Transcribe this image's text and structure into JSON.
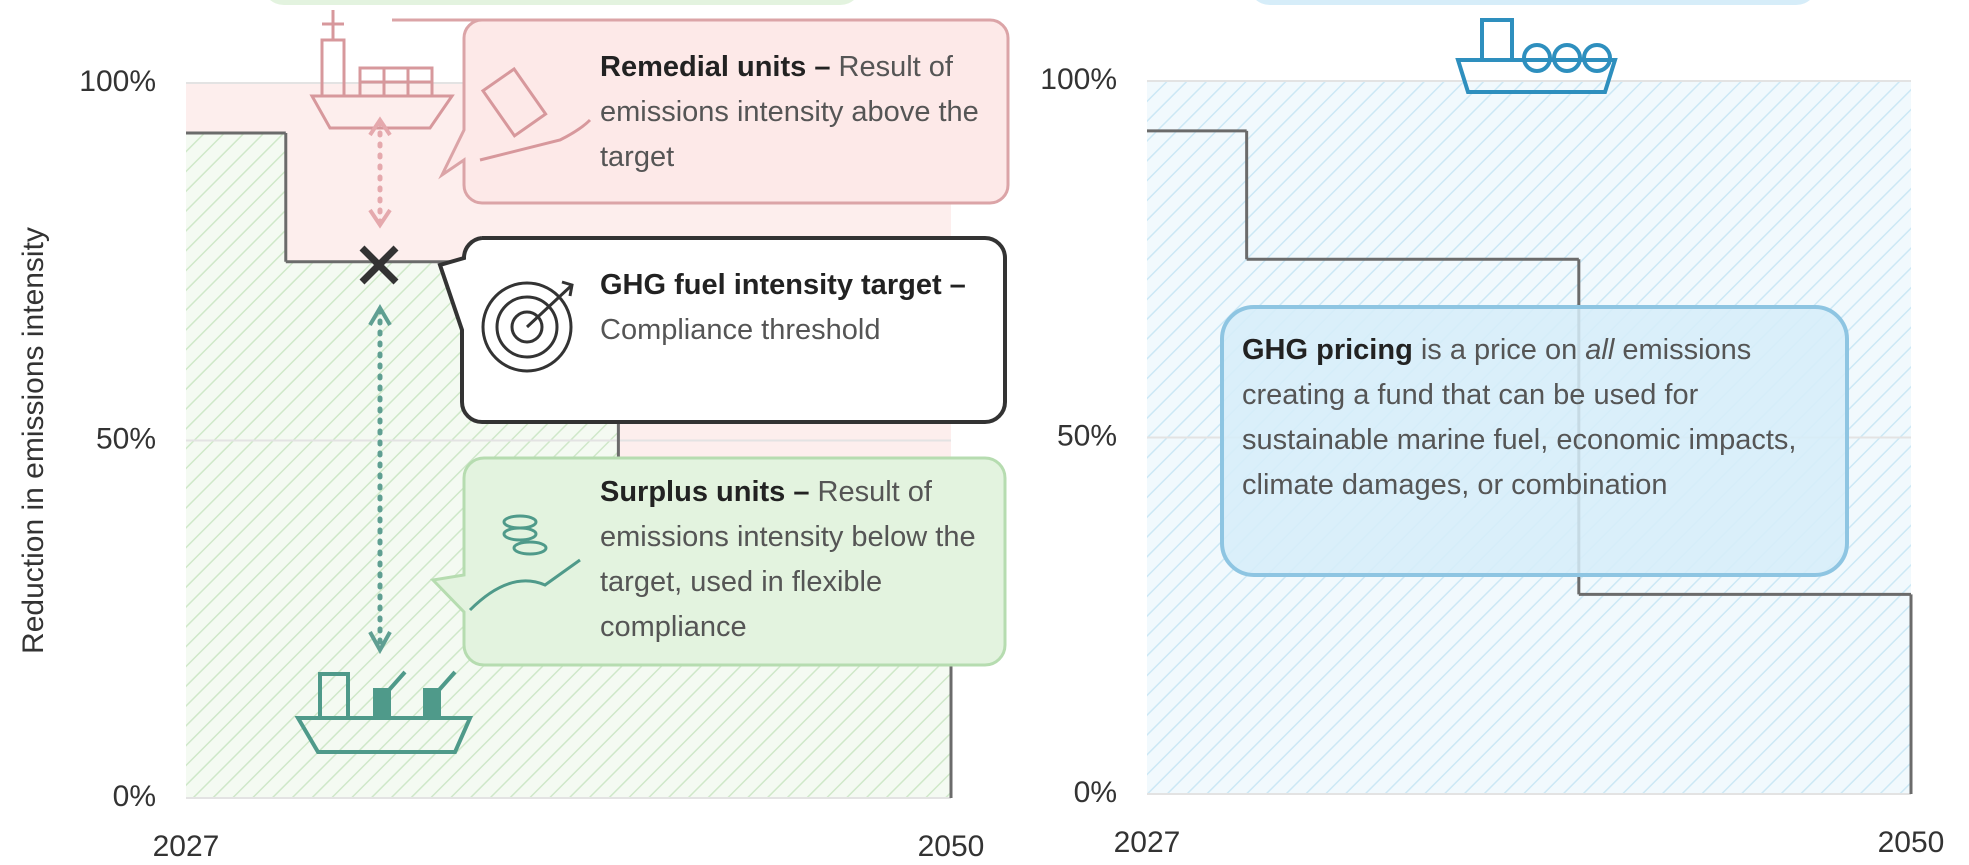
{
  "chart_data": [
    {
      "type": "step",
      "ylabel": "Reduction in emissions intensity",
      "x": [
        2027,
        2030,
        2040
      ],
      "values": [
        93,
        75,
        28
      ],
      "color": "#6b6b6b",
      "xlim": [
        2027,
        2050
      ],
      "xticks": [
        2027,
        2050
      ],
      "ylim": [
        0,
        100
      ],
      "yticks": [
        {
          "value": 0,
          "label": "0%"
        },
        {
          "value": 50,
          "label": "50%"
        },
        {
          "value": 100,
          "label": "100%"
        }
      ],
      "grid": true,
      "callouts": [
        {
          "bold": "Remedial units –",
          "text": " Result of emissions intensity above the target"
        },
        {
          "bold": "GHG fuel intensity target –",
          "text": " Compliance threshold"
        },
        {
          "bold": "Surplus units –",
          "text": " Result of emissions intensity below the target, used in flexible compliance"
        }
      ]
    },
    {
      "type": "step",
      "x": [
        2027,
        2030,
        2040
      ],
      "values": [
        93,
        75,
        28
      ],
      "color": "#6b6b6b",
      "xlim": [
        2027,
        2050
      ],
      "xticks": [
        2027,
        2050
      ],
      "ylim": [
        0,
        100
      ],
      "yticks": [
        {
          "value": 0,
          "label": "0%"
        },
        {
          "value": 50,
          "label": "50%"
        },
        {
          "value": 100,
          "label": "100%"
        }
      ],
      "grid": true,
      "callout": {
        "bold": "GHG pricing",
        "text1": " is a price on ",
        "italic": "all",
        "text2": " emissions creating a fund that can be used for sustainable marine fuel, economic impacts, climate damages, or combination"
      }
    }
  ]
}
